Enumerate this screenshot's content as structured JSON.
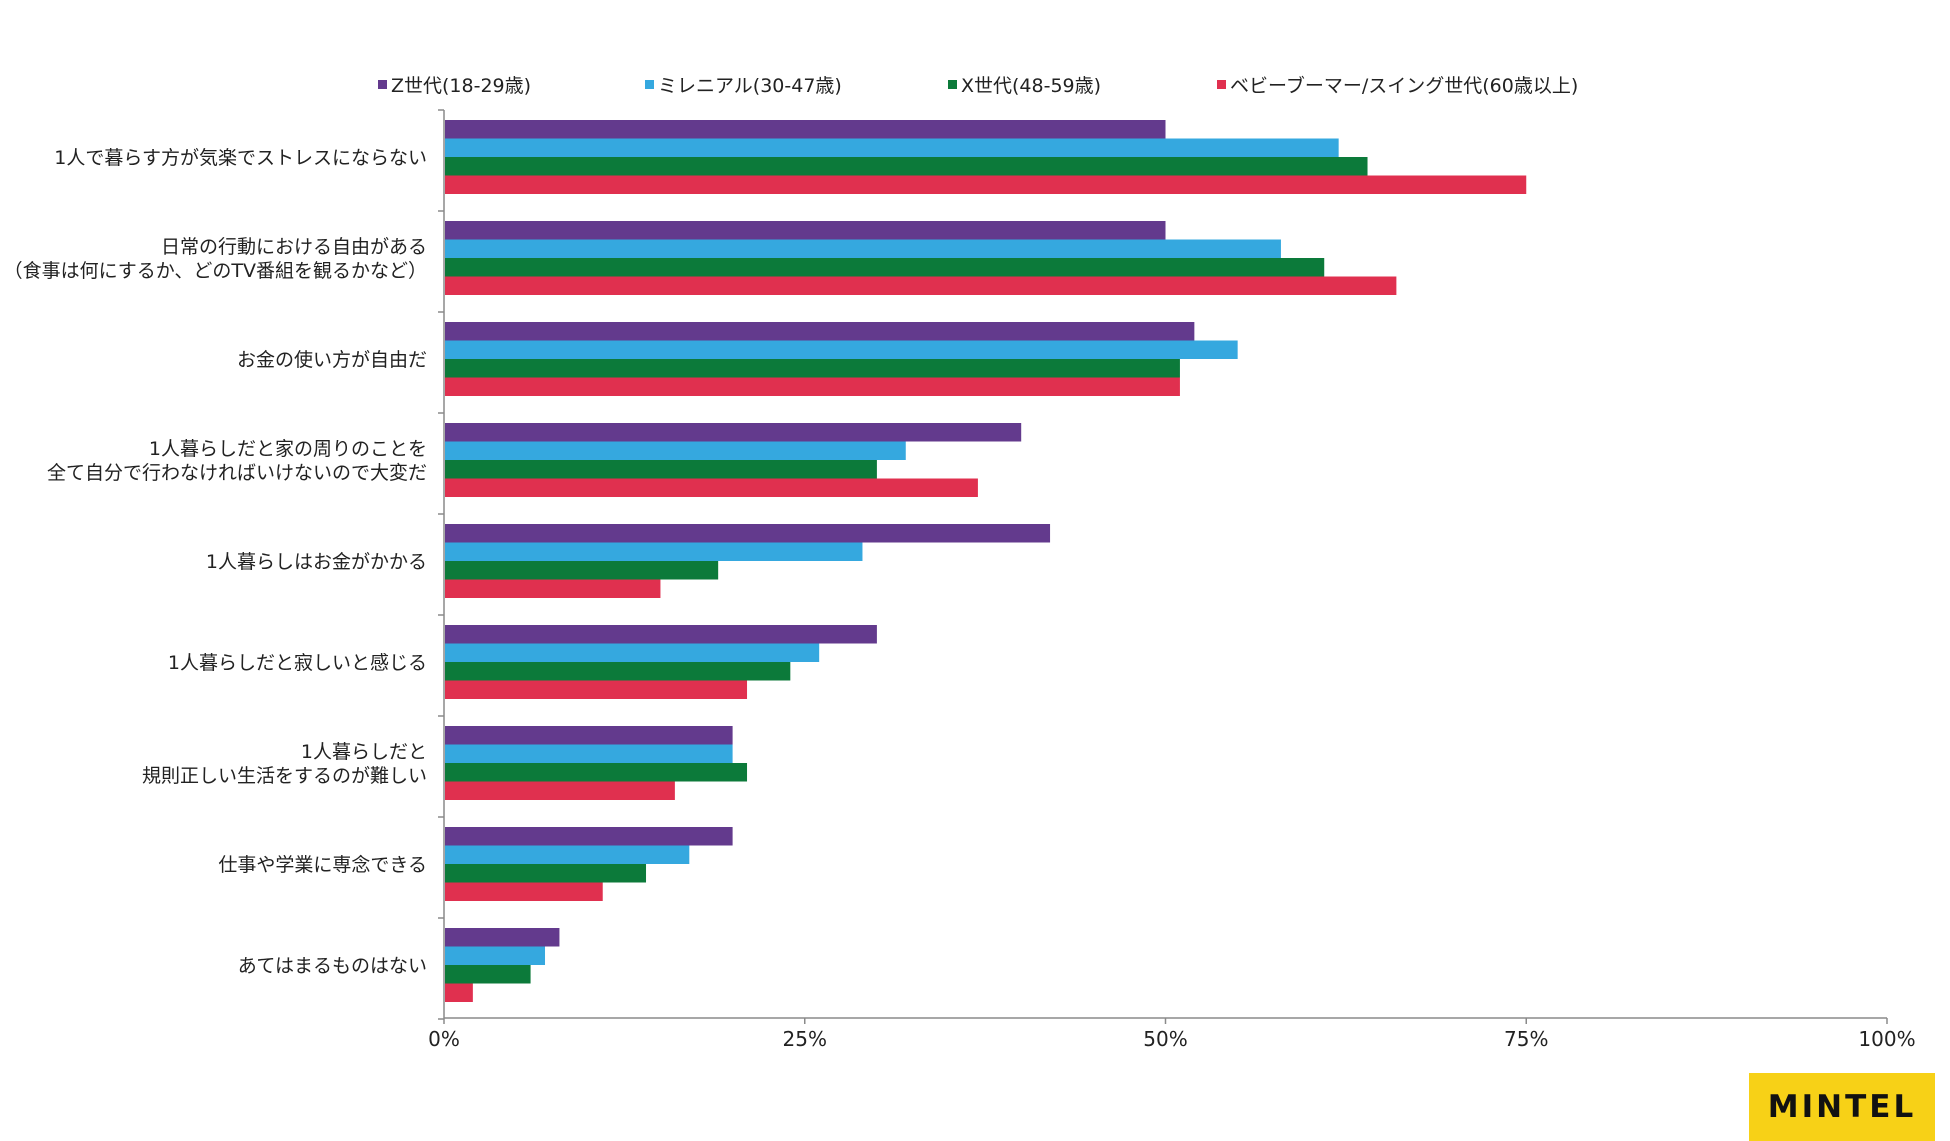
{
  "brand": {
    "logo_text": "MINTEL",
    "logo_color": "#f7d117"
  },
  "chart_data": {
    "type": "bar",
    "orientation": "horizontal",
    "title": "",
    "xlabel": "",
    "ylabel": "",
    "xlim": [
      0,
      100
    ],
    "x_ticks": [
      0,
      25,
      50,
      75,
      100
    ],
    "x_tick_labels": [
      "0%",
      "25%",
      "50%",
      "75%",
      "100%"
    ],
    "grid": false,
    "legend_position": "top",
    "categories": [
      [
        "1人で暮らす方が気楽でストレスにならない"
      ],
      [
        "日常の行動における自由がある",
        "（食事は何にするか、どのTV番組を観るかなど）"
      ],
      [
        "お金の使い方が自由だ"
      ],
      [
        "1人暮らしだと家の周りのことを",
        "全て自分で行わなければいけないので大変だ"
      ],
      [
        "1人暮らしはお金がかかる"
      ],
      [
        "1人暮らしだと寂しいと感じる"
      ],
      [
        "1人暮らしだと",
        "規則正しい生活をするのが難しい"
      ],
      [
        "仕事や学業に専念できる"
      ],
      [
        "あてはまるものはない"
      ]
    ],
    "series": [
      {
        "name": "Z世代(18-29歳)",
        "color": "#633a8d",
        "values": [
          50,
          50,
          52,
          40,
          42,
          30,
          20,
          20,
          8
        ]
      },
      {
        "name": "ミレニアル(30-47歳)",
        "color": "#35a8df",
        "values": [
          62,
          58,
          55,
          32,
          29,
          26,
          20,
          17,
          7
        ]
      },
      {
        "name": "X世代(48-59歳)",
        "color": "#0c7a3a",
        "values": [
          64,
          61,
          51,
          30,
          19,
          24,
          21,
          14,
          6
        ]
      },
      {
        "name": "ベビーブーマー/スイング世代(60歳以上)",
        "color": "#e0304f",
        "values": [
          75,
          66,
          51,
          37,
          15,
          21,
          16,
          11,
          2
        ]
      }
    ]
  }
}
